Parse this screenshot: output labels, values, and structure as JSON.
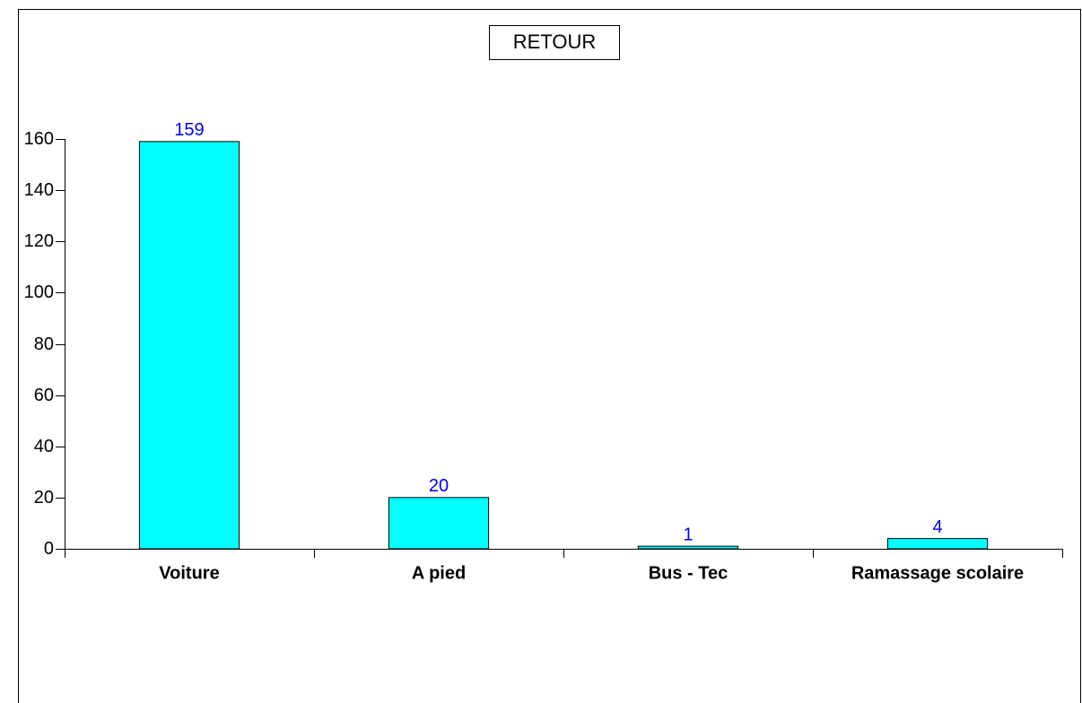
{
  "chart_data": {
    "type": "bar",
    "title": "RETOUR",
    "categories": [
      "Voiture",
      "A pied",
      "Bus - Tec",
      "Ramassage scolaire"
    ],
    "values": [
      159,
      20,
      1,
      4
    ],
    "color": "#00ffff",
    "ylim": [
      0,
      160
    ],
    "yticks": [
      0,
      20,
      40,
      60,
      80,
      100,
      120,
      140,
      160
    ],
    "grid": false
  }
}
